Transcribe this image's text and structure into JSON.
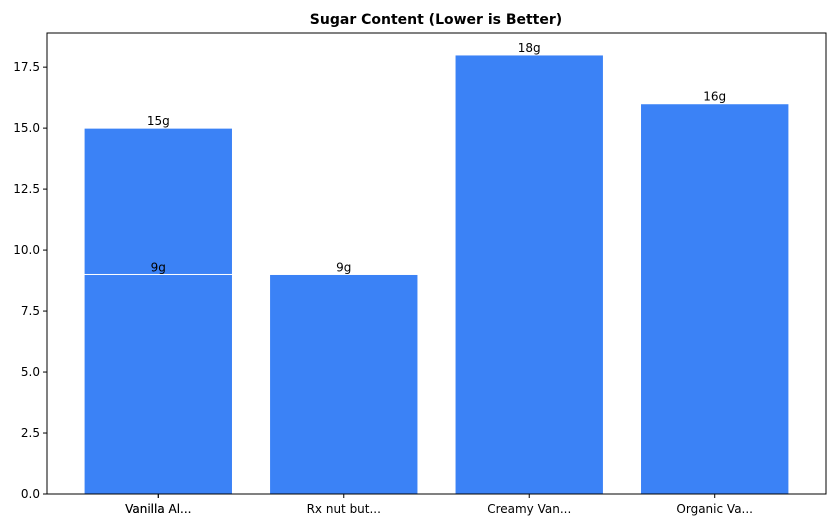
{
  "chart_data": {
    "type": "bar",
    "title": "Sugar Content (Lower is Better)",
    "categories": [
      "Vanilla Al...",
      "Vanilla Al...",
      "Rx nut but...",
      "Creamy Van...",
      "Organic Va..."
    ],
    "values": [
      15,
      9,
      9,
      18,
      16
    ],
    "value_labels": [
      "15g",
      "9g",
      "9g",
      "18g",
      "16g"
    ],
    "color": "#3b82f6",
    "ylim": [
      0,
      18.9
    ],
    "yticks": [
      {
        "value": 0,
        "label": "0.0"
      },
      2.5,
      {
        "value": 5,
        "label": "5.0"
      },
      7.5,
      {
        "value": 10,
        "label": "10.0"
      },
      12.5,
      {
        "value": 15,
        "label": "15.0"
      },
      17.5
    ],
    "grid": false
  }
}
